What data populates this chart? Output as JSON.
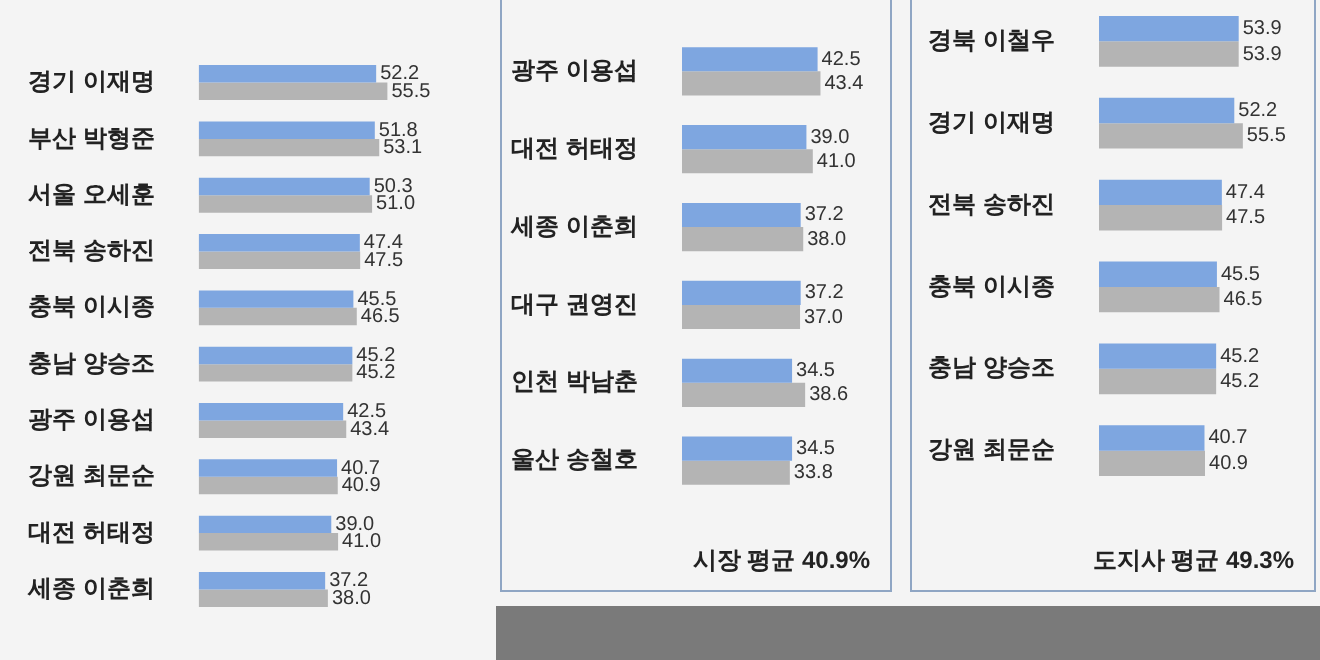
{
  "chart_data": [
    {
      "type": "bar",
      "orientation": "horizontal",
      "categories": [
        "경기 이재명",
        "부산 박형준",
        "서울 오세훈",
        "전북 송하진",
        "충북 이시종",
        "충남 양승조",
        "광주 이용섭",
        "강원 최문순",
        "대전 허태정",
        "세종 이춘희"
      ],
      "series": [
        {
          "color": "#7ea6e0",
          "values": [
            52.2,
            51.8,
            50.3,
            47.4,
            45.5,
            45.2,
            42.5,
            40.7,
            39.0,
            37.2
          ],
          "value_labels": [
            "52.2",
            "51.8",
            "50.3",
            "47.4",
            "45.5",
            "45.2",
            "42.5",
            "40.7",
            "39.0",
            "37.2"
          ]
        },
        {
          "color": "#b4b4b4",
          "values": [
            55.5,
            53.1,
            51.0,
            47.5,
            46.5,
            45.2,
            43.4,
            40.9,
            41.0,
            38.0
          ],
          "value_labels": [
            "55.5",
            "53.1",
            "51.0",
            "47.5",
            "46.5",
            "45.2",
            "43.4",
            "40.9",
            "41.0",
            "38.0"
          ]
        }
      ],
      "legend": false
    },
    {
      "type": "bar",
      "orientation": "horizontal",
      "categories": [
        "광주 이용섭",
        "대전 허태정",
        "세종 이춘희",
        "대구 권영진",
        "인천 박남춘",
        "울산 송철호"
      ],
      "series": [
        {
          "color": "#7ea6e0",
          "values": [
            42.5,
            39.0,
            37.2,
            37.2,
            34.5,
            34.5
          ],
          "value_labels": [
            "42.5",
            "39.0",
            "37.2",
            "37.2",
            "34.5",
            "34.5"
          ]
        },
        {
          "color": "#b4b4b4",
          "values": [
            43.4,
            41.0,
            38.0,
            37.0,
            38.6,
            33.8
          ],
          "value_labels": [
            "43.4",
            "41.0",
            "38.0",
            "37.0",
            "38.6",
            "33.8"
          ]
        }
      ],
      "annotations": [
        "시장 평균 40.9%"
      ]
    },
    {
      "type": "bar",
      "orientation": "horizontal",
      "categories": [
        "경북 이철우",
        "경기 이재명",
        "전북 송하진",
        "충북 이시종",
        "충남 양승조",
        "강원 최문순"
      ],
      "series": [
        {
          "color": "#7ea6e0",
          "values": [
            53.9,
            52.2,
            47.4,
            45.5,
            45.2,
            40.7
          ],
          "value_labels": [
            "53.9",
            "52.2",
            "47.4",
            "45.5",
            "45.2",
            "40.7"
          ]
        },
        {
          "color": "#b4b4b4",
          "values": [
            53.9,
            55.5,
            47.5,
            46.5,
            45.2,
            40.9
          ],
          "value_labels": [
            "53.9",
            "55.5",
            "47.5",
            "46.5",
            "45.2",
            "40.9"
          ]
        }
      ],
      "annotations": [
        "도지사 평균 49.3%"
      ]
    }
  ]
}
